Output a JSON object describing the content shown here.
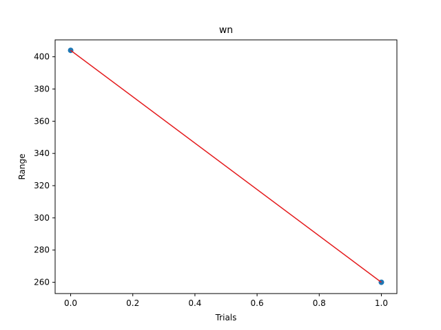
{
  "chart_data": {
    "type": "scatter",
    "title": "wn",
    "xlabel": "Trials",
    "ylabel": "Range",
    "xlim": [
      -0.05,
      1.05
    ],
    "ylim": [
      253,
      410.5
    ],
    "x_ticks": [
      0.0,
      0.2,
      0.4,
      0.6,
      0.8,
      1.0
    ],
    "x_tick_labels": [
      "0.0",
      "0.2",
      "0.4",
      "0.6",
      "0.8",
      "1.0"
    ],
    "y_ticks": [
      260,
      280,
      300,
      320,
      340,
      360,
      380,
      400
    ],
    "y_tick_labels": [
      "260",
      "280",
      "300",
      "320",
      "340",
      "360",
      "380",
      "400"
    ],
    "grid": false,
    "series": [
      {
        "type": "scatter",
        "x": [
          0,
          1
        ],
        "y": [
          404,
          260
        ],
        "color": "#1f77b4"
      },
      {
        "type": "line",
        "x": [
          0,
          1
        ],
        "y": [
          404,
          260
        ],
        "color": "#e41a1c"
      }
    ]
  }
}
